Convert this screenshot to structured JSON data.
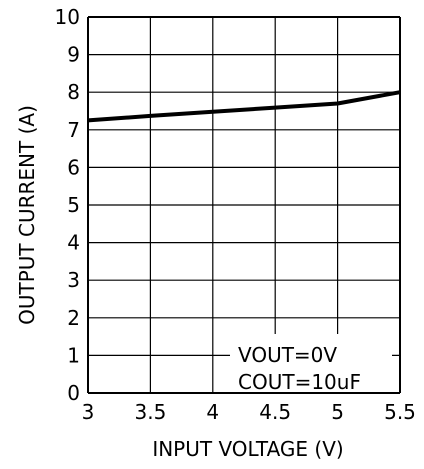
{
  "chart_data": {
    "type": "line",
    "xlabel": "INPUT  VOLTAGE  (V)",
    "ylabel": "OUTPUT  CURRENT  (A)",
    "xlim": [
      3,
      5.5
    ],
    "ylim": [
      0,
      10
    ],
    "x_ticks": [
      3,
      3.5,
      4,
      4.5,
      5,
      5.5
    ],
    "x_tick_labels": [
      "3",
      "3.5",
      "4",
      "4.5",
      "5",
      "5.5"
    ],
    "y_ticks": [
      0,
      1,
      2,
      3,
      4,
      5,
      6,
      7,
      8,
      9,
      10
    ],
    "y_tick_labels": [
      "0",
      "1",
      "2",
      "3",
      "4",
      "5",
      "6",
      "7",
      "8",
      "9",
      "10"
    ],
    "grid": true,
    "series": [
      {
        "x": [
          3.0,
          3.5,
          4.0,
          4.5,
          5.0,
          5.5
        ],
        "y": [
          7.25,
          7.37,
          7.48,
          7.59,
          7.7,
          8.0
        ],
        "color": "#000000"
      }
    ],
    "annotations": [
      "VOUT=0V",
      "COUT=10uF"
    ]
  }
}
